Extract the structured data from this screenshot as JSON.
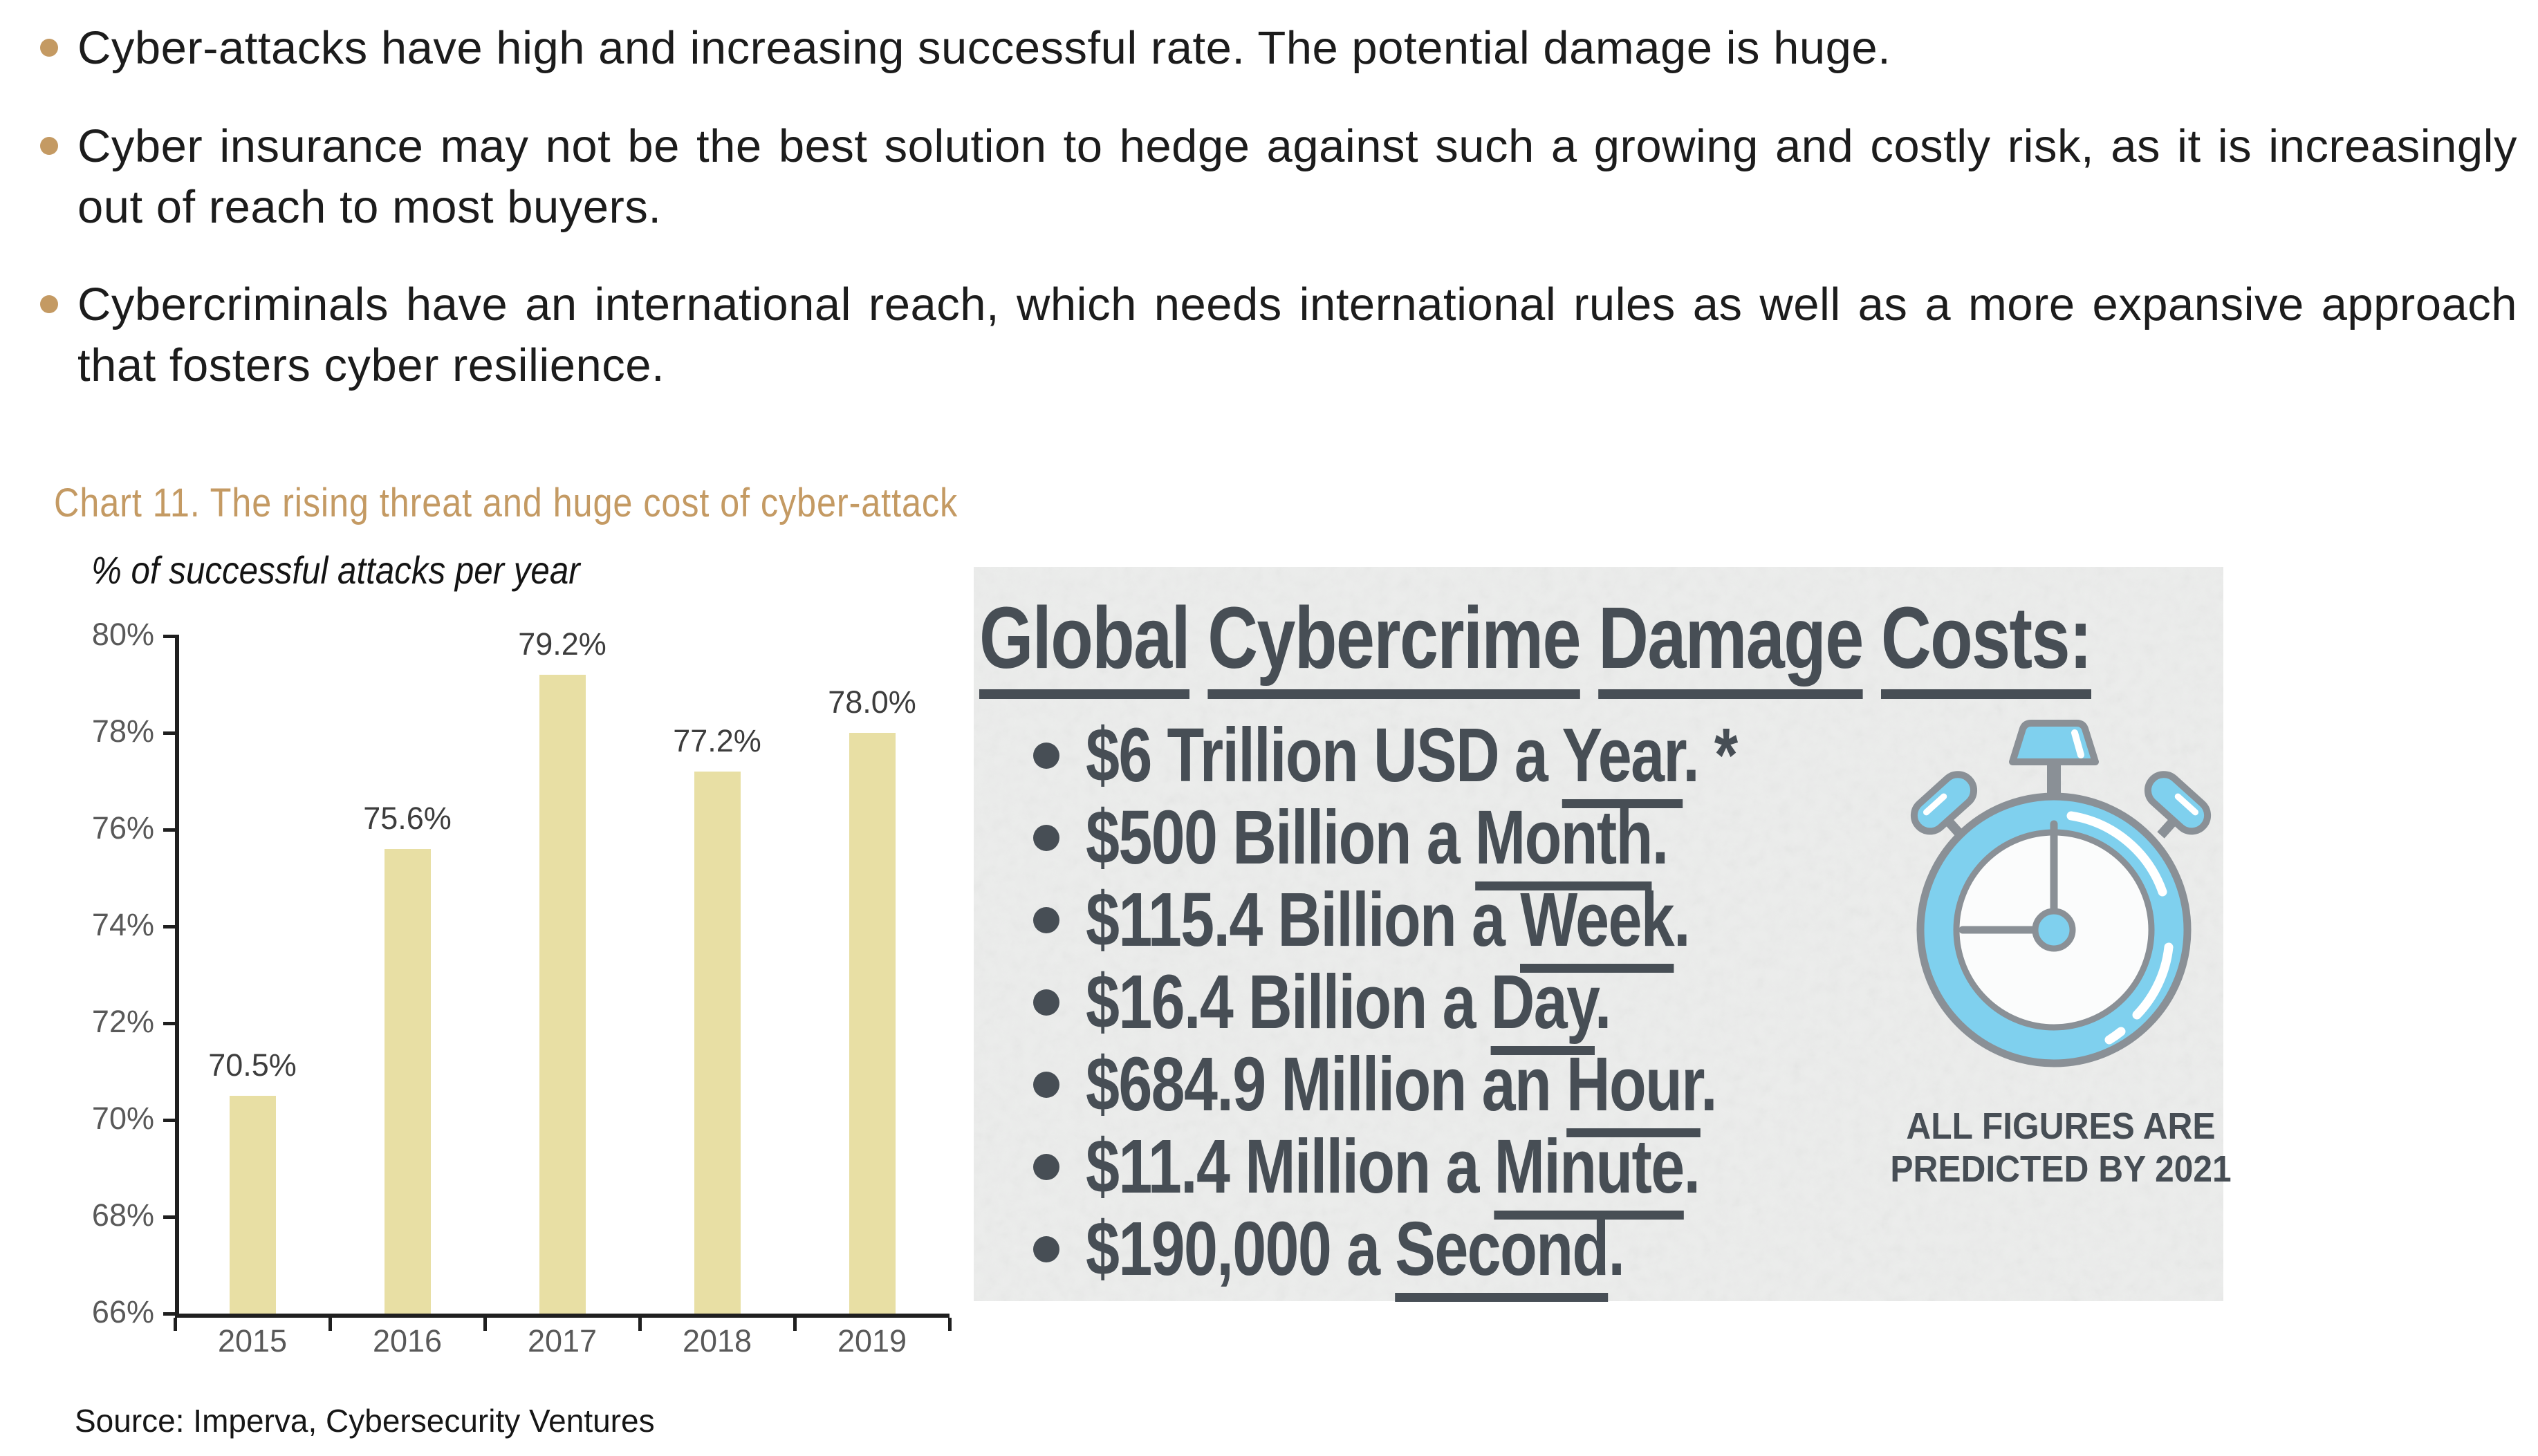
{
  "page": {
    "background": "#ffffff",
    "accent_tan": "#C49A63"
  },
  "bullets": {
    "marker_color": "#C49A63",
    "items": [
      {
        "text": "Cyber-attacks have high and increasing successful rate. The potential damage is huge.",
        "justify": false
      },
      {
        "text": "Cyber insurance may not be the best solution to hedge against such a growing and costly risk, as it is increasingly out of reach to most buyers.",
        "justify": true
      },
      {
        "text": "Cybercriminals have an international reach, which needs international rules as well as a more expansive approach that fosters cyber resilience.",
        "justify": true
      }
    ]
  },
  "chart": {
    "title": "Chart 11. The rising threat and huge cost of cyber-attack",
    "title_color": "#C49A63",
    "subtitle": "% of successful attacks per year",
    "source": "Source: Imperva, Cybersecurity Ventures"
  },
  "chart_data": {
    "type": "bar",
    "title": "% of successful attacks per year",
    "categories": [
      "2015",
      "2016",
      "2017",
      "2018",
      "2019"
    ],
    "values": [
      70.5,
      75.6,
      79.2,
      77.2,
      78.0
    ],
    "value_labels": [
      "70.5%",
      "75.6%",
      "79.2%",
      "77.2%",
      "78.0%"
    ],
    "xlabel": "",
    "ylabel": "",
    "ylim": [
      66,
      80
    ],
    "ytick_step": 2,
    "ytick_labels": [
      "66%",
      "68%",
      "70%",
      "72%",
      "74%",
      "76%",
      "78%",
      "80%"
    ],
    "grid": false,
    "legend": null,
    "bar_color": "#E8DFA4",
    "axis_color": "#1F1F1F",
    "axis_label_color": "#595959"
  },
  "infographic": {
    "bg_color": "#ECEDEC",
    "text_color": "#474E55",
    "title": "Global Cybercrime Damage Costs:",
    "items": [
      {
        "pre": "$6 Trillion USD a ",
        "underline": "Year",
        "post": ". *"
      },
      {
        "pre": "$500 Billion a ",
        "underline": "Month",
        "post": "."
      },
      {
        "pre": "$115.4 Billion a ",
        "underline": "Week",
        "post": "."
      },
      {
        "pre": "$16.4 Billion a ",
        "underline": "Day",
        "post": "."
      },
      {
        "pre": "$684.9 Million an ",
        "underline": "Hour",
        "post": "."
      },
      {
        "pre": "$11.4 Million a ",
        "underline": "Minute",
        "post": "."
      },
      {
        "pre": "$190,000 a ",
        "underline": "Second",
        "post": "."
      }
    ],
    "footnote_lines": [
      "ALL FIGURES ARE",
      "PREDICTED BY 2021"
    ],
    "stopwatch": {
      "body_color": "#7FD0EE",
      "outline_color": "#8A9096",
      "face_color": "#FBFCFC"
    }
  }
}
